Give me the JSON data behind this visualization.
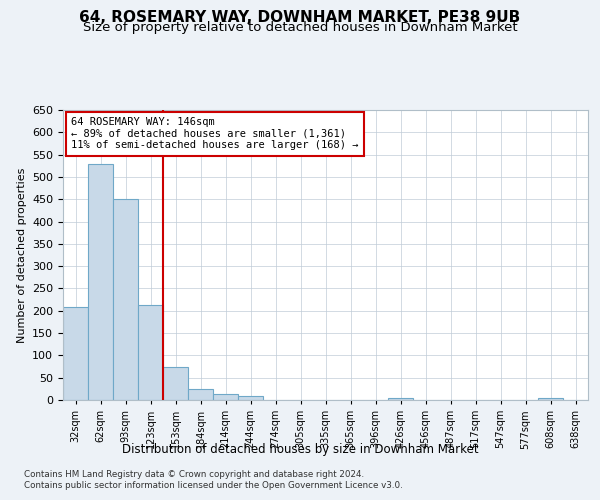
{
  "title": "64, ROSEMARY WAY, DOWNHAM MARKET, PE38 9UB",
  "subtitle": "Size of property relative to detached houses in Downham Market",
  "xlabel": "Distribution of detached houses by size in Downham Market",
  "ylabel": "Number of detached properties",
  "footer_line1": "Contains HM Land Registry data © Crown copyright and database right 2024.",
  "footer_line2": "Contains public sector information licensed under the Open Government Licence v3.0.",
  "bin_labels": [
    "32sqm",
    "62sqm",
    "93sqm",
    "123sqm",
    "153sqm",
    "184sqm",
    "214sqm",
    "244sqm",
    "274sqm",
    "305sqm",
    "335sqm",
    "365sqm",
    "396sqm",
    "426sqm",
    "456sqm",
    "487sqm",
    "517sqm",
    "547sqm",
    "577sqm",
    "608sqm",
    "638sqm"
  ],
  "bar_values": [
    208,
    530,
    450,
    213,
    75,
    25,
    13,
    10,
    0,
    0,
    0,
    0,
    0,
    5,
    0,
    0,
    0,
    0,
    0,
    5,
    0
  ],
  "bar_color": "#c8d9e8",
  "bar_edge_color": "#6fa8c8",
  "vline_x_index": 4,
  "vline_color": "#cc0000",
  "annotation_text": "64 ROSEMARY WAY: 146sqm\n← 89% of detached houses are smaller (1,361)\n11% of semi-detached houses are larger (168) →",
  "annotation_box_color": "#cc0000",
  "ylim": [
    0,
    650
  ],
  "yticks": [
    0,
    50,
    100,
    150,
    200,
    250,
    300,
    350,
    400,
    450,
    500,
    550,
    600,
    650
  ],
  "bg_color": "#edf2f7",
  "plot_bg_color": "#ffffff",
  "title_fontsize": 11,
  "subtitle_fontsize": 9.5
}
